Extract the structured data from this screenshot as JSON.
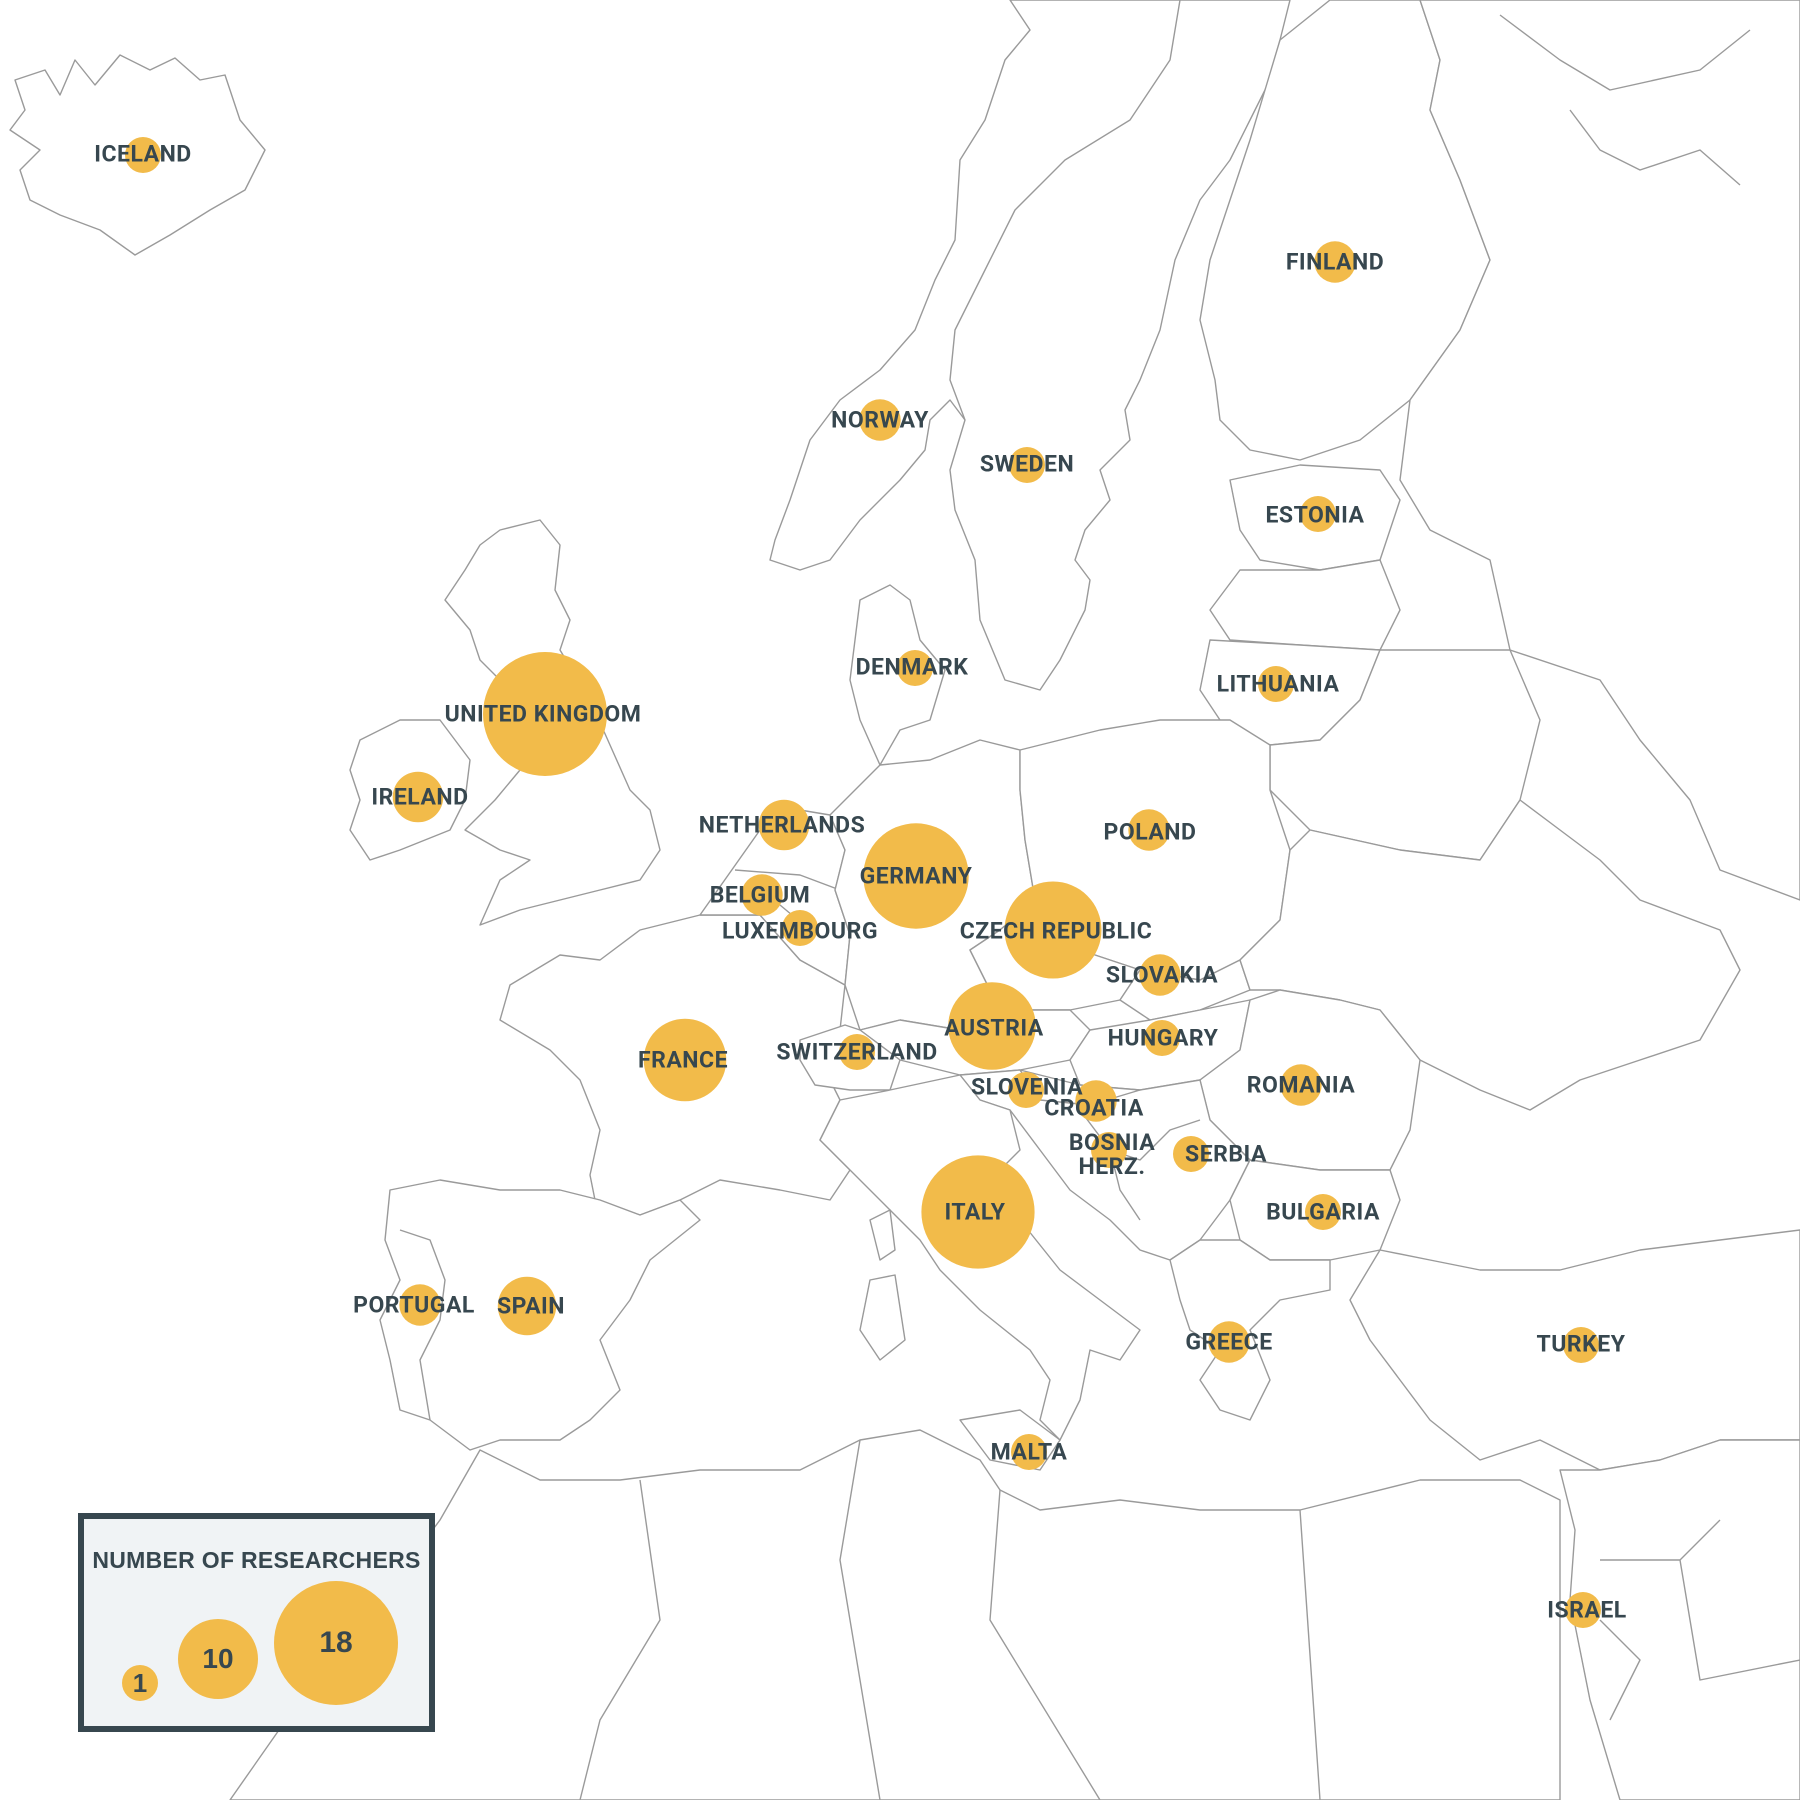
{
  "legend": {
    "title": "NUMBER OF RESEARCHERS",
    "scale": [
      {
        "value": "1",
        "label": "1"
      },
      {
        "value": "10",
        "label": "10"
      },
      {
        "value": "18",
        "label": "18"
      }
    ]
  },
  "colors": {
    "bubble": "#f2bb4a",
    "label": "#37474f",
    "border": "#9a9a9a",
    "legend_background": "#f0f3f5"
  },
  "countries": [
    {
      "name": "ICELAND",
      "label": "ICELAND",
      "researchers": 1
    },
    {
      "name": "FINLAND",
      "label": "FINLAND",
      "researchers": 2
    },
    {
      "name": "NORWAY",
      "label": "NORWAY",
      "researchers": 2
    },
    {
      "name": "SWEDEN",
      "label": "SWEDEN",
      "researchers": 1
    },
    {
      "name": "ESTONIA",
      "label": "ESTONIA",
      "researchers": 1
    },
    {
      "name": "DENMARK",
      "label": "DENMARK",
      "researchers": 1
    },
    {
      "name": "LITHUANIA",
      "label": "LITHUANIA",
      "researchers": 1
    },
    {
      "name": "UNITED KINGDOM",
      "label": "UNITED KINGDOM",
      "researchers": 18
    },
    {
      "name": "IRELAND",
      "label": "IRELAND",
      "researchers": 3
    },
    {
      "name": "NETHERLANDS",
      "label": "NETHERLANDS",
      "researchers": 3
    },
    {
      "name": "POLAND",
      "label": "POLAND",
      "researchers": 2
    },
    {
      "name": "GERMANY",
      "label": "GERMANY",
      "researchers": 13
    },
    {
      "name": "BELGIUM",
      "label": "BELGIUM",
      "researchers": 2
    },
    {
      "name": "LUXEMBOURG",
      "label": "LUXEMBOURG",
      "researchers": 1
    },
    {
      "name": "CZECH REPUBLIC",
      "label": "CZECH REPUBLIC",
      "researchers": 11
    },
    {
      "name": "SLOVAKIA",
      "label": "SLOVAKIA",
      "researchers": 2
    },
    {
      "name": "AUSTRIA",
      "label": "AUSTRIA",
      "researchers": 9
    },
    {
      "name": "HUNGARY",
      "label": "HUNGARY",
      "researchers": 1
    },
    {
      "name": "FRANCE",
      "label": "FRANCE",
      "researchers": 8
    },
    {
      "name": "SWITZERLAND",
      "label": "SWITZERLAND",
      "researchers": 1
    },
    {
      "name": "ROMANIA",
      "label": "ROMANIA",
      "researchers": 2
    },
    {
      "name": "SLOVENIA",
      "label": "SLOVENIA",
      "researchers": 1
    },
    {
      "name": "CROATIA",
      "label": "CROATIA",
      "researchers": 2
    },
    {
      "name": "BOSNIA HERZ.",
      "label": "BOSNIA HERZ.",
      "researchers": 1
    },
    {
      "name": "SERBIA",
      "label": "SERBIA",
      "researchers": 1
    },
    {
      "name": "ITALY",
      "label": "ITALY",
      "researchers": 15
    },
    {
      "name": "BULGARIA",
      "label": "BULGARIA",
      "researchers": 1
    },
    {
      "name": "PORTUGAL",
      "label": "PORTUGAL",
      "researchers": 2
    },
    {
      "name": "SPAIN",
      "label": "SPAIN",
      "researchers": 4
    },
    {
      "name": "GREECE",
      "label": "GREECE",
      "researchers": 2
    },
    {
      "name": "TURKEY",
      "label": "TURKEY",
      "researchers": 1
    },
    {
      "name": "MALTA",
      "label": "MALTA",
      "researchers": 1
    },
    {
      "name": "ISRAEL",
      "label": "ISRAEL",
      "researchers": 1
    }
  ]
}
